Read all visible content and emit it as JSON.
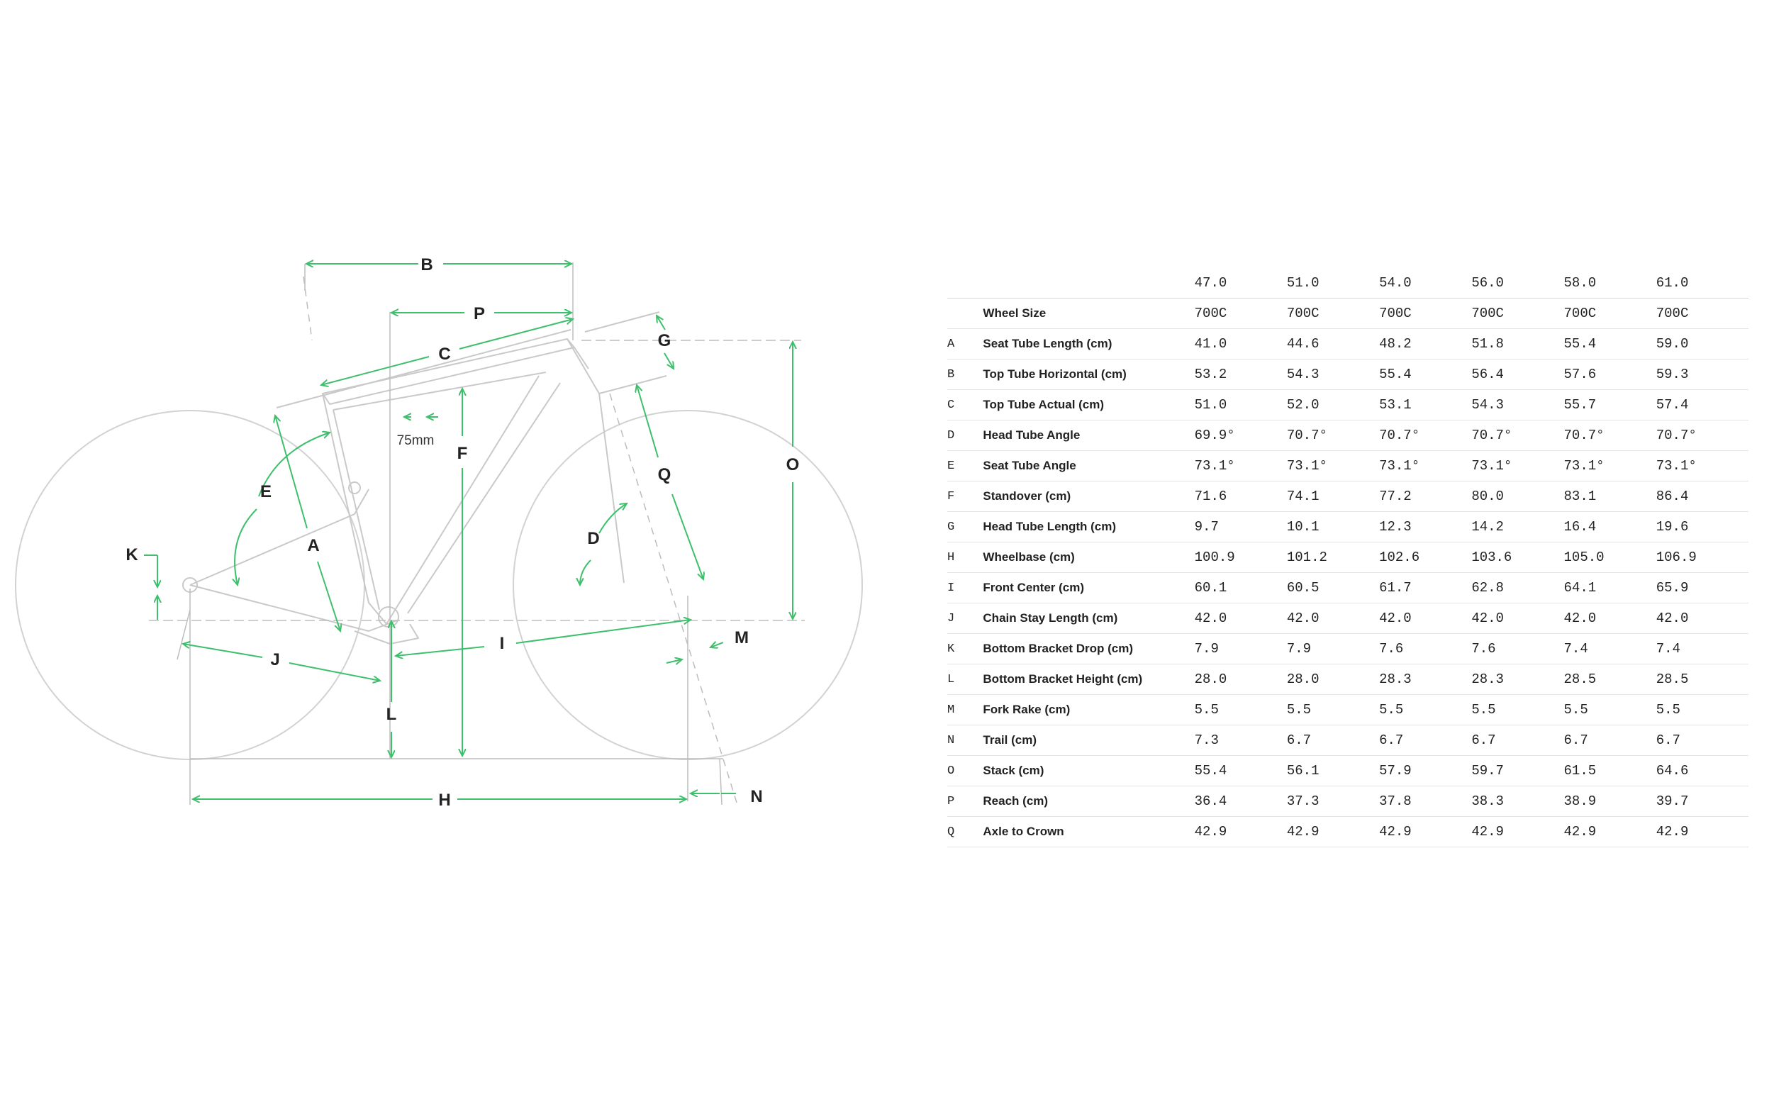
{
  "colors": {
    "accent": "#3dbf6b",
    "frame_line": "#c9c9c9",
    "text": "#222222",
    "rule": "#e4e4e4"
  },
  "diagram": {
    "labels": {
      "A": "A",
      "B": "B",
      "C": "C",
      "D": "D",
      "E": "E",
      "F": "F",
      "G": "G",
      "H": "H",
      "I": "I",
      "J": "J",
      "K": "K",
      "L": "L",
      "M": "M",
      "N": "N",
      "O": "O",
      "P": "P",
      "Q": "Q"
    },
    "measure_75mm": "75mm"
  },
  "table": {
    "sizes": [
      "47.0",
      "51.0",
      "54.0",
      "56.0",
      "58.0",
      "61.0"
    ],
    "rows": [
      {
        "letter": "",
        "name": "Wheel Size",
        "values": [
          "700C",
          "700C",
          "700C",
          "700C",
          "700C",
          "700C"
        ]
      },
      {
        "letter": "A",
        "name": "Seat Tube Length (cm)",
        "values": [
          "41.0",
          "44.6",
          "48.2",
          "51.8",
          "55.4",
          "59.0"
        ]
      },
      {
        "letter": "B",
        "name": "Top Tube Horizontal (cm)",
        "values": [
          "53.2",
          "54.3",
          "55.4",
          "56.4",
          "57.6",
          "59.3"
        ]
      },
      {
        "letter": "C",
        "name": "Top Tube Actual (cm)",
        "values": [
          "51.0",
          "52.0",
          "53.1",
          "54.3",
          "55.7",
          "57.4"
        ]
      },
      {
        "letter": "D",
        "name": "Head Tube Angle",
        "values": [
          "69.9°",
          "70.7°",
          "70.7°",
          "70.7°",
          "70.7°",
          "70.7°"
        ]
      },
      {
        "letter": "E",
        "name": "Seat Tube Angle",
        "values": [
          "73.1°",
          "73.1°",
          "73.1°",
          "73.1°",
          "73.1°",
          "73.1°"
        ]
      },
      {
        "letter": "F",
        "name": "Standover (cm)",
        "values": [
          "71.6",
          "74.1",
          "77.2",
          "80.0",
          "83.1",
          "86.4"
        ]
      },
      {
        "letter": "G",
        "name": "Head Tube Length (cm)",
        "values": [
          "9.7",
          "10.1",
          "12.3",
          "14.2",
          "16.4",
          "19.6"
        ]
      },
      {
        "letter": "H",
        "name": "Wheelbase (cm)",
        "values": [
          "100.9",
          "101.2",
          "102.6",
          "103.6",
          "105.0",
          "106.9"
        ]
      },
      {
        "letter": "I",
        "name": "Front Center (cm)",
        "values": [
          "60.1",
          "60.5",
          "61.7",
          "62.8",
          "64.1",
          "65.9"
        ]
      },
      {
        "letter": "J",
        "name": "Chain Stay Length (cm)",
        "values": [
          "42.0",
          "42.0",
          "42.0",
          "42.0",
          "42.0",
          "42.0"
        ]
      },
      {
        "letter": "K",
        "name": "Bottom Bracket Drop (cm)",
        "values": [
          "7.9",
          "7.9",
          "7.6",
          "7.6",
          "7.4",
          "7.4"
        ]
      },
      {
        "letter": "L",
        "name": "Bottom Bracket Height (cm)",
        "values": [
          "28.0",
          "28.0",
          "28.3",
          "28.3",
          "28.5",
          "28.5"
        ]
      },
      {
        "letter": "M",
        "name": "Fork Rake (cm)",
        "values": [
          "5.5",
          "5.5",
          "5.5",
          "5.5",
          "5.5",
          "5.5"
        ]
      },
      {
        "letter": "N",
        "name": "Trail (cm)",
        "values": [
          "7.3",
          "6.7",
          "6.7",
          "6.7",
          "6.7",
          "6.7"
        ]
      },
      {
        "letter": "O",
        "name": "Stack (cm)",
        "values": [
          "55.4",
          "56.1",
          "57.9",
          "59.7",
          "61.5",
          "64.6"
        ]
      },
      {
        "letter": "P",
        "name": "Reach (cm)",
        "values": [
          "36.4",
          "37.3",
          "37.8",
          "38.3",
          "38.9",
          "39.7"
        ]
      },
      {
        "letter": "Q",
        "name": "Axle to Crown",
        "values": [
          "42.9",
          "42.9",
          "42.9",
          "42.9",
          "42.9",
          "42.9"
        ]
      }
    ]
  }
}
